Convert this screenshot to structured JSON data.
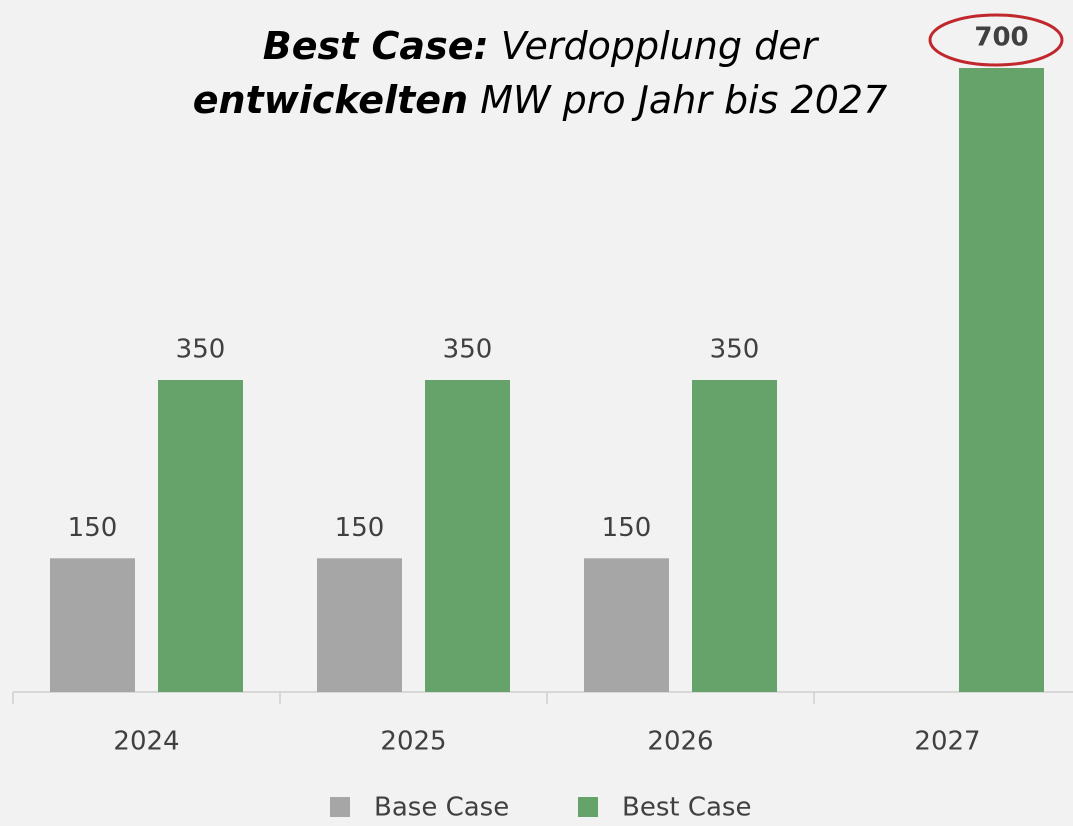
{
  "chart_data": {
    "type": "bar",
    "title_parts": [
      "Best Case:",
      "Verdopplung der",
      "entwickelten",
      "MW pro Jahr bis 2027"
    ],
    "categories": [
      "2024",
      "2025",
      "2026",
      "2027"
    ],
    "series": [
      {
        "name": "Base Case",
        "color": "#a6a6a6",
        "values": [
          150,
          150,
          150,
          null
        ]
      },
      {
        "name": "Best Case",
        "color": "#66a36b",
        "values": [
          350,
          350,
          350,
          700
        ]
      }
    ],
    "legend": "bottom"
  }
}
